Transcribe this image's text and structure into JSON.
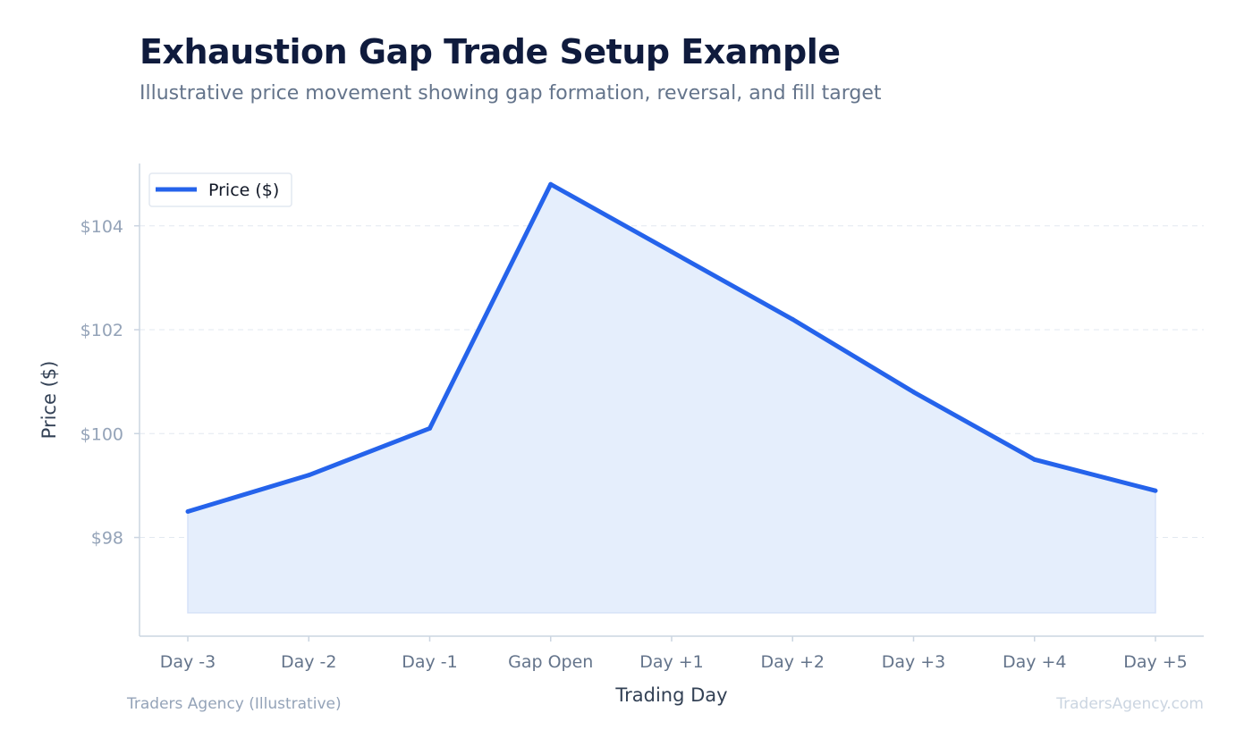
{
  "header": {
    "title": "Exhaustion Gap Trade Setup Example",
    "subtitle": "Illustrative price movement showing gap formation, reversal, and fill target"
  },
  "footer": {
    "source": "Traders Agency (Illustrative)",
    "watermark": "TradersAgency.com"
  },
  "colors": {
    "line": "#2563eb",
    "fill": "#e5eefc",
    "axis": "#cbd5e1",
    "grid": "#e2e8f0",
    "tick_text": "#94a3b8",
    "label_text": "#334155"
  },
  "chart_data": {
    "type": "area",
    "categories": [
      "Day -3",
      "Day -2",
      "Day -1",
      "Gap Open",
      "Day +1",
      "Day +2",
      "Day +3",
      "Day +4",
      "Day +5"
    ],
    "series": [
      {
        "name": "Price ($)",
        "values": [
          98.5,
          99.2,
          100.1,
          104.8,
          103.5,
          102.2,
          100.8,
          99.5,
          98.9
        ]
      }
    ],
    "fill_baseline": 96.55,
    "xlabel": "Trading Day",
    "ylabel": "Price ($)",
    "ylim": [
      96.1,
      105.2
    ],
    "yticks": [
      98,
      100,
      102,
      104
    ],
    "ytick_labels": [
      "$98",
      "$100",
      "$102",
      "$104"
    ],
    "grid": "horizontal dashed",
    "legend": "top-left"
  }
}
